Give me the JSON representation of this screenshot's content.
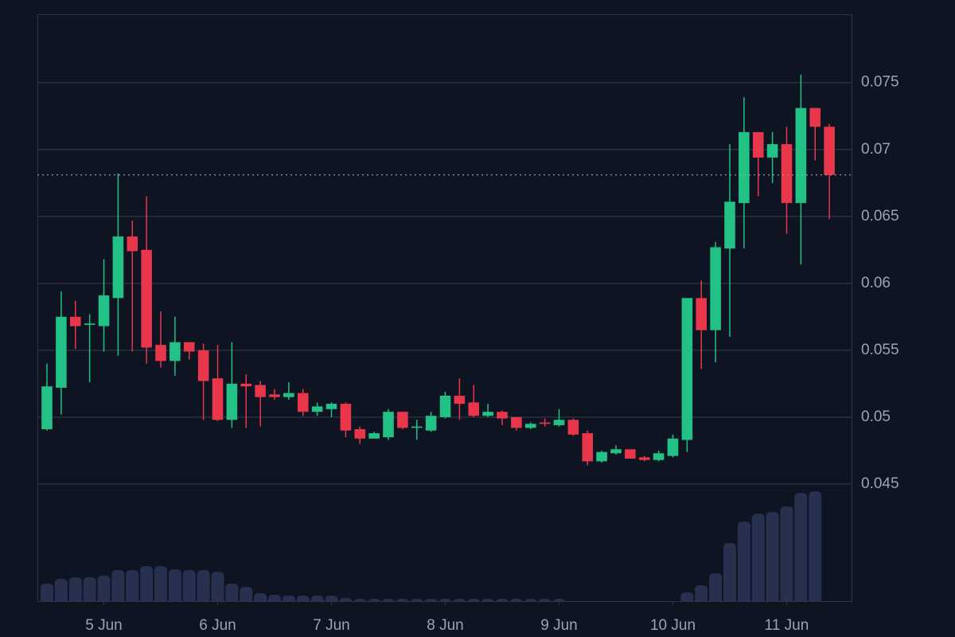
{
  "chart_data": {
    "type": "candlestick",
    "x": [
      4.5,
      4.625,
      4.75,
      4.875,
      5,
      5.125,
      5.25,
      5.375,
      5.5,
      5.625,
      5.75,
      5.875,
      6,
      6.125,
      6.25,
      6.375,
      6.5,
      6.625,
      6.75,
      6.875,
      7,
      7.125,
      7.25,
      7.375,
      7.5,
      7.625,
      7.75,
      7.875,
      8,
      8.125,
      8.25,
      8.375,
      8.5,
      8.625,
      8.75,
      8.875,
      9,
      9.125,
      9.25,
      9.375,
      9.5,
      9.625,
      9.75,
      9.875,
      10,
      10.125,
      10.25,
      10.375,
      10.5,
      10.625,
      10.75,
      10.875,
      11,
      11.125,
      11.25,
      11.375
    ],
    "open": [
      0.0491,
      0.0522,
      0.0575,
      0.0569,
      0.0568,
      0.0589,
      0.0635,
      0.0625,
      0.0554,
      0.0542,
      0.0556,
      0.055,
      0.0529,
      0.0498,
      0.0525,
      0.0524,
      0.0517,
      0.0515,
      0.0518,
      0.0504,
      0.0506,
      0.051,
      0.0491,
      0.0484,
      0.0485,
      0.0504,
      0.0492,
      0.049,
      0.05,
      0.0516,
      0.0511,
      0.0501,
      0.0504,
      0.05,
      0.0492,
      0.0496,
      0.0494,
      0.0498,
      0.0488,
      0.0467,
      0.0473,
      0.0476,
      0.047,
      0.0468,
      0.0471,
      0.0483,
      0.0589,
      0.0565,
      0.0626,
      0.066,
      0.0713,
      0.0694,
      0.0704,
      0.066,
      0.0731,
      0.0717
    ],
    "high": [
      0.054,
      0.0594,
      0.0587,
      0.0577,
      0.0618,
      0.0682,
      0.0647,
      0.0665,
      0.0579,
      0.0575,
      0.0556,
      0.0555,
      0.0554,
      0.0556,
      0.0532,
      0.0527,
      0.0521,
      0.0526,
      0.0521,
      0.0511,
      0.0511,
      0.0511,
      0.0493,
      0.0489,
      0.0506,
      0.0504,
      0.0498,
      0.0504,
      0.0519,
      0.0529,
      0.0524,
      0.051,
      0.0505,
      0.05,
      0.0496,
      0.0499,
      0.0506,
      0.0499,
      0.049,
      0.0475,
      0.0479,
      0.0476,
      0.0471,
      0.0475,
      0.0487,
      0.0589,
      0.0602,
      0.0631,
      0.0704,
      0.0739,
      0.0713,
      0.0713,
      0.0717,
      0.0756,
      0.0731,
      0.0719
    ],
    "low": [
      0.049,
      0.0502,
      0.0551,
      0.0526,
      0.0549,
      0.0546,
      0.0549,
      0.054,
      0.0537,
      0.0531,
      0.0543,
      0.0498,
      0.0497,
      0.0492,
      0.0492,
      0.0493,
      0.0513,
      0.0513,
      0.0501,
      0.0501,
      0.05,
      0.0485,
      0.048,
      0.0484,
      0.0483,
      0.0491,
      0.0483,
      0.0489,
      0.0499,
      0.0498,
      0.05,
      0.05,
      0.0494,
      0.049,
      0.0491,
      0.0493,
      0.0493,
      0.0486,
      0.0464,
      0.0466,
      0.0472,
      0.0469,
      0.0467,
      0.0467,
      0.047,
      0.0474,
      0.0536,
      0.0541,
      0.056,
      0.0626,
      0.0665,
      0.0675,
      0.0637,
      0.0614,
      0.0692,
      0.0648
    ],
    "close": [
      0.0523,
      0.0575,
      0.0568,
      0.057,
      0.0591,
      0.0635,
      0.0624,
      0.0552,
      0.0542,
      0.0556,
      0.0549,
      0.0527,
      0.0498,
      0.0525,
      0.0523,
      0.0515,
      0.0515,
      0.0518,
      0.0504,
      0.0508,
      0.051,
      0.049,
      0.0484,
      0.0488,
      0.0504,
      0.0492,
      0.0493,
      0.0501,
      0.0516,
      0.051,
      0.0501,
      0.0504,
      0.0499,
      0.0492,
      0.0495,
      0.0495,
      0.0498,
      0.0487,
      0.0467,
      0.0474,
      0.0476,
      0.0469,
      0.0468,
      0.0473,
      0.0484,
      0.0589,
      0.0565,
      0.0627,
      0.0661,
      0.0713,
      0.0694,
      0.0704,
      0.066,
      0.0731,
      0.0717,
      0.0681
    ],
    "volume": [
      22,
      28,
      30,
      30,
      32,
      39,
      39,
      44,
      44,
      40,
      39,
      39,
      37,
      22,
      18,
      10,
      8,
      7,
      7,
      7,
      7,
      4,
      3,
      3,
      3,
      3,
      3,
      3,
      3,
      3,
      3,
      3,
      3,
      3,
      3,
      3,
      3,
      null,
      null,
      null,
      null,
      null,
      null,
      null,
      null,
      11,
      20,
      35,
      73,
      100,
      110,
      112,
      119,
      136,
      138,
      null
    ],
    "up_color": "#22c185",
    "down_color": "#e8364a",
    "volume_color": "#27314f",
    "xlim": [
      4.416,
      11.57
    ],
    "xticks": [
      {
        "value": 5,
        "label": "5 Jun"
      },
      {
        "value": 6,
        "label": "6 Jun"
      },
      {
        "value": 7,
        "label": "7 Jun"
      },
      {
        "value": 8,
        "label": "8 Jun"
      },
      {
        "value": 9,
        "label": "9 Jun"
      },
      {
        "value": 10,
        "label": "10 Jun"
      },
      {
        "value": 11,
        "label": "11 Jun"
      }
    ],
    "ylim": [
      0.03625,
      0.0801
    ],
    "yticks": [
      0.045,
      0.05,
      0.055,
      0.06,
      0.065,
      0.07,
      0.075
    ],
    "grid": true
  }
}
